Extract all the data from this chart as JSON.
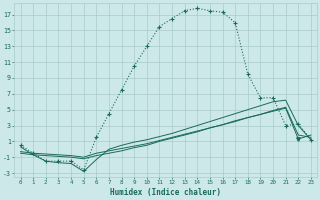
{
  "xlabel": "Humidex (Indice chaleur)",
  "bg_color": "#cce8e8",
  "grid_color": "#aacccc",
  "line_color": "#1a6b5a",
  "xlim": [
    -0.5,
    23.5
  ],
  "ylim": [
    -3.5,
    18.5
  ],
  "xticks": [
    0,
    1,
    2,
    3,
    4,
    5,
    6,
    7,
    8,
    9,
    10,
    11,
    12,
    13,
    14,
    15,
    16,
    17,
    18,
    19,
    20,
    21,
    22,
    23
  ],
  "yticks": [
    -3,
    -1,
    1,
    3,
    5,
    7,
    9,
    11,
    13,
    15,
    17
  ],
  "main_x": [
    0,
    1,
    2,
    3,
    4,
    5,
    6,
    7,
    8,
    9,
    10,
    11,
    12,
    13,
    14,
    15,
    16,
    17,
    18,
    19,
    20,
    21,
    22,
    23
  ],
  "main_y": [
    0.5,
    -0.5,
    -1.5,
    -1.5,
    -1.5,
    -2.6,
    1.5,
    4.5,
    7.5,
    10.5,
    13.0,
    15.5,
    16.5,
    17.5,
    17.8,
    17.5,
    17.3,
    16.0,
    9.5,
    6.5,
    6.5,
    3.0,
    3.2,
    1.2
  ],
  "line1_x": [
    0,
    1,
    2,
    3,
    4,
    5,
    6,
    7,
    8,
    9,
    10,
    11,
    12,
    13,
    14,
    15,
    16,
    17,
    18,
    19,
    20,
    21,
    22,
    23
  ],
  "line1_y": [
    0.3,
    -0.7,
    -1.5,
    -1.7,
    -1.8,
    -2.8,
    -1.3,
    0.0,
    0.5,
    0.9,
    1.2,
    1.6,
    2.0,
    2.5,
    3.0,
    3.5,
    4.0,
    4.5,
    5.0,
    5.5,
    6.0,
    6.2,
    3.0,
    1.2
  ],
  "line2_x": [
    0,
    1,
    2,
    3,
    4,
    5,
    6,
    7,
    8,
    9,
    10,
    11,
    12,
    13,
    14,
    15,
    16,
    17,
    18,
    19,
    20,
    21,
    22,
    23
  ],
  "line2_y": [
    -0.5,
    -0.7,
    -0.8,
    -0.9,
    -1.0,
    -1.2,
    -0.8,
    -0.5,
    -0.2,
    0.2,
    0.5,
    1.0,
    1.4,
    1.8,
    2.2,
    2.7,
    3.1,
    3.6,
    4.0,
    4.4,
    4.9,
    5.3,
    1.8,
    1.5
  ],
  "line3_x": [
    0,
    1,
    2,
    3,
    4,
    5,
    6,
    7,
    8,
    9,
    10,
    11,
    12,
    13,
    14,
    15,
    16,
    17,
    18,
    19,
    20,
    21,
    22,
    23
  ],
  "line3_y": [
    -0.3,
    -0.5,
    -0.6,
    -0.7,
    -0.8,
    -1.0,
    -0.5,
    -0.2,
    0.1,
    0.4,
    0.7,
    1.1,
    1.5,
    1.9,
    2.3,
    2.7,
    3.1,
    3.5,
    4.0,
    4.4,
    4.8,
    5.2,
    1.3,
    1.8
  ],
  "marker_v_x": [
    22
  ],
  "marker_v_y": [
    1.3
  ]
}
